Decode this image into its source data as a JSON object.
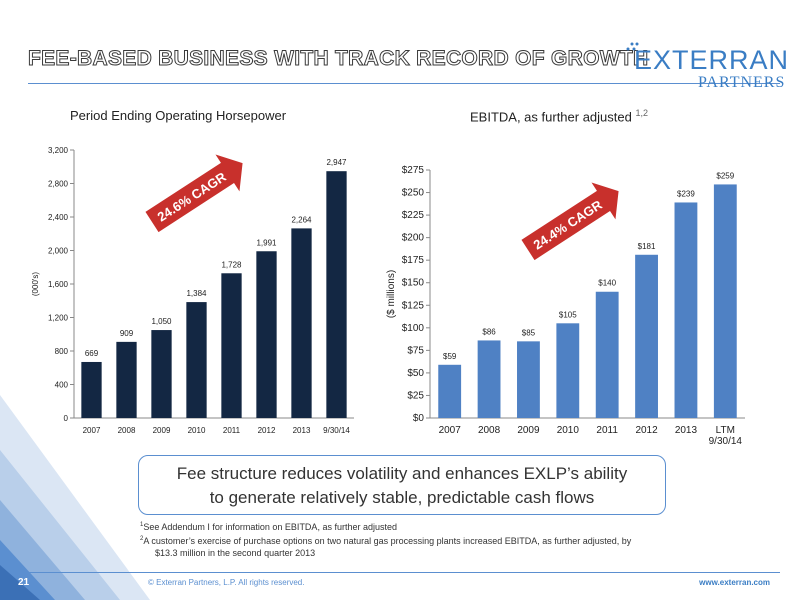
{
  "slide": {
    "title": "FEE-BASED BUSINESS WITH TRACK RECORD OF GROWTH",
    "logo_main": "EXTERRAN",
    "logo_sub": "PARTNERS",
    "callout_line1": "Fee structure reduces volatility and enhances EXLP’s ability",
    "callout_line2": "to generate relatively stable, predictable cash flows",
    "footnote1_num": "1",
    "footnote1": "See Addendum I for information on EBITDA, as further adjusted",
    "footnote2_num": "2",
    "footnote2_line1": "A customer’s exercise of purchase options on two natural gas processing plants increased EBITDA, as further adjusted, by",
    "footnote2_line2": "$13.3 million in the second quarter 2013",
    "footer_left": "© Exterran Partners, L.P. All rights reserved.",
    "footer_right": "www.exterran.com",
    "page_number": "21"
  },
  "colors": {
    "navy_bar": "#132743",
    "blue_bar": "#4f81c4",
    "arrow_red": "#c8302c",
    "accent_blue": "#5b8fd0"
  },
  "chart_data": [
    {
      "type": "bar",
      "title": "Period Ending Operating Horsepower",
      "ylabel": "(000's)",
      "categories": [
        "2007",
        "2008",
        "2009",
        "2010",
        "2011",
        "2012",
        "2013",
        "9/30/14"
      ],
      "values": [
        669,
        909,
        1050,
        1384,
        1728,
        1991,
        2264,
        2947
      ],
      "value_labels": [
        "669",
        "909",
        "1,050",
        "1,384",
        "1,728",
        "1,991",
        "2,264",
        "2,947"
      ],
      "ylim": [
        0,
        3200
      ],
      "yticks": [
        "0",
        "400",
        "800",
        "1,200",
        "1,600",
        "2,000",
        "2,400",
        "2,800",
        "3,200"
      ],
      "annotation": "24.6% CAGR",
      "grid": false,
      "color": "#132743"
    },
    {
      "type": "bar",
      "title": "EBITDA, as further adjusted",
      "title_superscript": "1,2",
      "ylabel": "($ millions)",
      "categories": [
        "2007",
        "2008",
        "2009",
        "2010",
        "2011",
        "2012",
        "2013",
        "LTM\n9/30/14"
      ],
      "values": [
        59,
        86,
        85,
        105,
        140,
        181,
        239,
        259
      ],
      "value_labels": [
        "$59",
        "$86",
        "$85",
        "$105",
        "$140",
        "$181",
        "$239",
        "$259"
      ],
      "ylim": [
        0,
        275
      ],
      "yticks": [
        "$0",
        "$25",
        "$50",
        "$75",
        "$100",
        "$125",
        "$150",
        "$175",
        "$200",
        "$225",
        "$250",
        "$275"
      ],
      "annotation": "24.4% CAGR",
      "grid": false,
      "color": "#4f81c4"
    }
  ]
}
